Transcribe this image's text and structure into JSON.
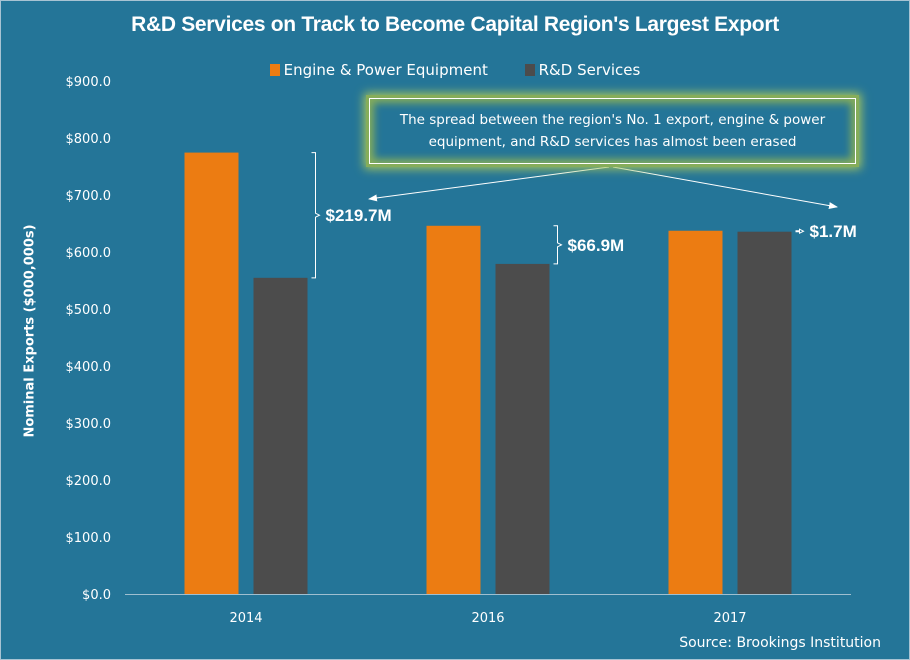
{
  "chart_data": {
    "type": "bar",
    "title": "R&D Services on Track to Become Capital Region's Largest Export",
    "xlabel": "",
    "ylabel": "Nominal Exports ($000,000s)",
    "ylim": [
      0,
      900
    ],
    "ytick_step": 100,
    "yticks": [
      "$0.0",
      "$100.0",
      "$200.0",
      "$300.0",
      "$400.0",
      "$500.0",
      "$600.0",
      "$700.0",
      "$800.0",
      "$900.0"
    ],
    "grid": false,
    "legend_position": "top-center",
    "categories": [
      "2014",
      "2016",
      "2017"
    ],
    "series": [
      {
        "name": "Engine & Power Equipment",
        "color": "#ec7c12",
        "values": [
          774.4,
          646.0,
          637.3
        ]
      },
      {
        "name": "R&D Services",
        "color": "#4c4c4c",
        "values": [
          554.7,
          579.1,
          635.6
        ]
      }
    ],
    "annotations": {
      "gaps": [
        "$219.7M",
        "$66.9M",
        "$1.7M"
      ],
      "note": "The spread between the region's No. 1 export, engine & power equipment, and R&D services has almost been erased"
    },
    "source": "Source:  Brookings Institution"
  }
}
